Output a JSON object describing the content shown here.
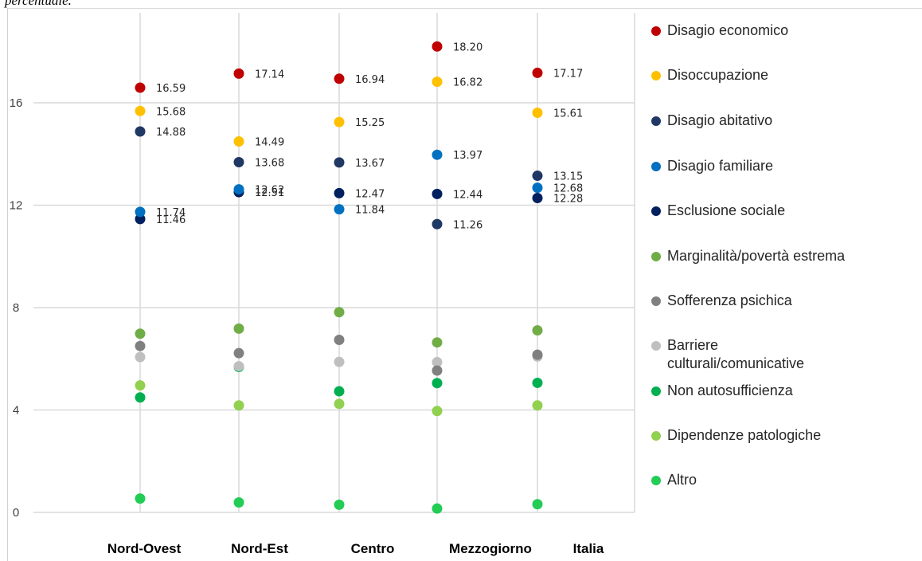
{
  "caption": "percentuale.",
  "chart_data": {
    "type": "scatter",
    "categories": [
      "Nord-Ovest",
      "Nord-Est",
      "Centro",
      "Mezzogiorno",
      "Italia"
    ],
    "ylim": [
      0,
      18.7
    ],
    "yticks": [
      "0",
      "4",
      "8",
      "12",
      "16"
    ],
    "ytick_values": [
      0,
      4,
      8,
      12,
      16
    ],
    "grid": "horizontal and vertical",
    "legend_position": "right",
    "series": [
      {
        "name": "Disagio economico",
        "color": "#c00000",
        "values": [
          16.59,
          17.14,
          16.94,
          18.2,
          17.17
        ],
        "labels": [
          "16.59",
          "17.14",
          "16.94",
          "18.20",
          "17.17"
        ]
      },
      {
        "name": "Disoccupazione",
        "color": "#ffc000",
        "values": [
          15.68,
          14.49,
          15.25,
          16.82,
          15.61
        ],
        "labels": [
          "15.68",
          "14.49",
          "15.25",
          "16.82",
          "15.61"
        ]
      },
      {
        "name": "Disagio abitativo",
        "color": "#203864",
        "values": [
          14.88,
          13.68,
          13.67,
          11.26,
          13.15
        ],
        "labels": [
          "14.88",
          "13.68",
          "13.67",
          "11.26",
          "13.15"
        ]
      },
      {
        "name": "Disagio familiare",
        "color": "#0070c0",
        "values": [
          11.74,
          12.62,
          11.84,
          13.97,
          12.68
        ],
        "labels": [
          "11.74",
          "12.62",
          "11.84",
          "13.97",
          "12.68"
        ]
      },
      {
        "name": "Esclusione sociale",
        "color": "#002060",
        "values": [
          11.46,
          12.51,
          12.47,
          12.44,
          12.28
        ],
        "labels": [
          "11.46",
          "12.51",
          "12.47",
          "12.44",
          "12.28"
        ]
      },
      {
        "name": "Marginalità/povertà estrema",
        "color": "#70ad47",
        "values": [
          6.98,
          7.18,
          7.82,
          6.64,
          7.11
        ]
      },
      {
        "name": "Sofferenza psichica",
        "color": "#808080",
        "values": [
          6.5,
          6.22,
          6.74,
          5.54,
          6.16
        ]
      },
      {
        "name": "Barriere culturali/comunicative",
        "color": "#bfbfbf",
        "values": [
          6.07,
          5.71,
          5.88,
          5.87,
          6.09
        ]
      },
      {
        "name": "Non autosufficienza",
        "color": "#00b050",
        "values": [
          4.49,
          5.68,
          4.73,
          5.05,
          5.06
        ]
      },
      {
        "name": "Dipendenze patologiche",
        "color": "#92d050",
        "values": [
          4.96,
          4.18,
          4.24,
          3.96,
          4.18
        ]
      },
      {
        "name": "Altro",
        "color": "#22cc55",
        "values": [
          0.54,
          0.39,
          0.3,
          0.15,
          0.32
        ]
      }
    ]
  },
  "legend": [
    {
      "label": "Disagio economico",
      "color": "#c00000"
    },
    {
      "label": "Disoccupazione",
      "color": "#ffc000"
    },
    {
      "label": "Disagio abitativo",
      "color": "#203864"
    },
    {
      "label": "Disagio familiare",
      "color": "#0070c0"
    },
    {
      "label": "Esclusione sociale",
      "color": "#002060"
    },
    {
      "label": "Marginalità/povertà estrema",
      "color": "#70ad47"
    },
    {
      "label": "Sofferenza psichica",
      "color": "#808080"
    },
    {
      "label": "Barriere culturali/comunicative",
      "color": "#bfbfbf"
    },
    {
      "label": "Non autosufficienza",
      "color": "#00b050"
    },
    {
      "label": "Dipendenze patologiche",
      "color": "#92d050"
    },
    {
      "label": "Altro",
      "color": "#22cc55"
    }
  ]
}
